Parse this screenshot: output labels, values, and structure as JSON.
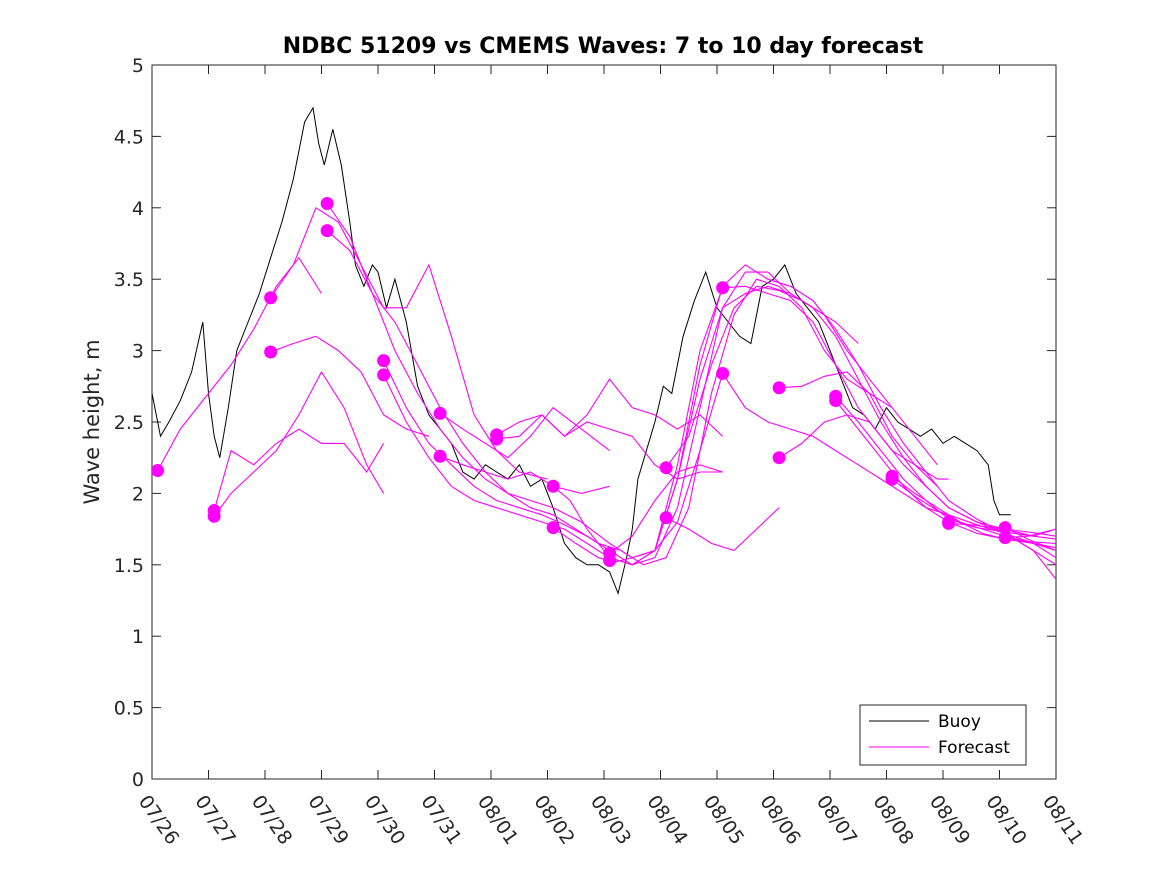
{
  "chart_data": {
    "type": "line",
    "title": "NDBC 51209 vs CMEMS Waves: 7 to 10 day forecast",
    "xlabel": "",
    "ylabel": "Wave height, m",
    "x_ticks": [
      "07/26",
      "07/27",
      "07/28",
      "07/29",
      "07/30",
      "07/31",
      "08/01",
      "08/02",
      "08/03",
      "08/04",
      "08/05",
      "08/06",
      "08/07",
      "08/08",
      "08/09",
      "08/10",
      "08/11"
    ],
    "xlim": [
      0,
      16
    ],
    "ylim": [
      0,
      5
    ],
    "y_ticks": [
      "0",
      "0.5",
      "1",
      "1.5",
      "2",
      "2.5",
      "3",
      "3.5",
      "4",
      "4.5",
      "5"
    ],
    "grid": false,
    "legend": {
      "position": "bottom-right",
      "entries": [
        "Buoy",
        "Forecast"
      ]
    },
    "colors": {
      "buoy": "#000000",
      "forecast": "#ff00ff"
    },
    "buoy": {
      "name": "Buoy",
      "x": [
        0,
        0.15,
        0.3,
        0.5,
        0.7,
        0.9,
        1.0,
        1.1,
        1.2,
        1.35,
        1.5,
        1.7,
        1.9,
        2.1,
        2.3,
        2.5,
        2.7,
        2.85,
        2.95,
        3.05,
        3.2,
        3.35,
        3.5,
        3.6,
        3.75,
        3.9,
        4.0,
        4.15,
        4.3,
        4.5,
        4.7,
        4.9,
        5.1,
        5.3,
        5.5,
        5.7,
        5.9,
        6.1,
        6.3,
        6.5,
        6.7,
        6.9,
        7.1,
        7.3,
        7.5,
        7.7,
        7.9,
        8.1,
        8.25,
        8.4,
        8.5,
        8.6,
        8.75,
        8.9,
        9.05,
        9.2,
        9.4,
        9.6,
        9.8,
        10.0,
        10.2,
        10.4,
        10.6,
        10.8,
        11.0,
        11.2,
        11.4,
        11.6,
        11.8,
        12.0,
        12.2,
        12.4,
        12.6,
        12.8,
        13.0,
        13.2,
        13.4,
        13.6,
        13.8,
        14.0,
        14.2,
        14.4,
        14.6,
        14.8,
        14.9,
        15.0,
        15.1,
        15.2
      ],
      "values": [
        2.7,
        2.4,
        2.5,
        2.65,
        2.85,
        3.2,
        2.7,
        2.4,
        2.25,
        2.6,
        3.0,
        3.2,
        3.4,
        3.65,
        3.9,
        4.2,
        4.6,
        4.7,
        4.45,
        4.3,
        4.55,
        4.3,
        3.9,
        3.6,
        3.45,
        3.6,
        3.55,
        3.3,
        3.5,
        3.2,
        2.75,
        2.55,
        2.45,
        2.35,
        2.15,
        2.1,
        2.2,
        2.15,
        2.1,
        2.2,
        2.05,
        2.1,
        1.9,
        1.65,
        1.55,
        1.5,
        1.5,
        1.45,
        1.3,
        1.55,
        1.75,
        2.1,
        2.3,
        2.5,
        2.75,
        2.7,
        3.1,
        3.35,
        3.55,
        3.3,
        3.2,
        3.1,
        3.05,
        3.45,
        3.5,
        3.6,
        3.4,
        3.3,
        3.2,
        3.0,
        2.8,
        2.6,
        2.55,
        2.45,
        2.6,
        2.5,
        2.45,
        2.4,
        2.45,
        2.35,
        2.4,
        2.35,
        2.3,
        2.2,
        1.95,
        1.85,
        1.85,
        1.85
      ]
    },
    "forecast": {
      "name": "Forecast",
      "lines": [
        {
          "x": [
            0.1,
            0.5,
            1.0,
            1.4,
            1.8,
            2.2,
            2.6,
            3.0
          ],
          "values": [
            2.16,
            2.45,
            2.7,
            2.9,
            3.15,
            3.45,
            3.65,
            3.4
          ]
        },
        {
          "x": [
            1.1,
            1.4,
            1.8,
            2.2,
            2.6,
            3.0,
            3.4,
            3.8,
            4.1
          ],
          "values": [
            1.84,
            2.0,
            2.15,
            2.3,
            2.55,
            2.85,
            2.6,
            2.2,
            2.0
          ]
        },
        {
          "x": [
            1.1,
            1.4,
            1.8,
            2.2,
            2.6,
            3.0,
            3.4,
            3.8,
            4.1
          ],
          "values": [
            1.88,
            2.3,
            2.2,
            2.35,
            2.45,
            2.35,
            2.35,
            2.15,
            2.35
          ]
        },
        {
          "x": [
            2.1,
            2.5,
            2.9,
            3.3,
            3.7,
            4.1,
            4.5,
            4.9,
            5.3,
            5.7,
            6.1,
            6.5,
            7.0
          ],
          "values": [
            3.37,
            3.6,
            4.0,
            3.9,
            3.6,
            3.3,
            3.3,
            3.6,
            3.1,
            2.55,
            2.3,
            2.15,
            2.1
          ]
        },
        {
          "x": [
            2.1,
            2.5,
            2.9,
            3.3,
            3.7,
            4.1,
            4.5,
            4.9
          ],
          "values": [
            2.99,
            3.05,
            3.1,
            3.0,
            2.85,
            2.55,
            2.45,
            2.4
          ]
        },
        {
          "x": [
            3.1,
            3.5,
            3.9,
            4.3,
            4.7,
            5.1,
            5.5,
            5.9,
            6.3,
            6.7,
            7.1,
            7.6,
            8.1,
            8.5,
            8.9,
            9.3,
            9.7,
            10.1,
            10.5,
            10.9,
            11.3,
            11.7,
            12.1,
            12.5
          ],
          "values": [
            4.03,
            3.8,
            3.4,
            3.0,
            2.7,
            2.45,
            2.25,
            2.1,
            2.0,
            1.95,
            1.9,
            1.8,
            1.65,
            1.55,
            1.6,
            2.1,
            2.8,
            3.3,
            3.4,
            3.45,
            3.4,
            3.3,
            3.2,
            3.05
          ]
        },
        {
          "x": [
            3.1,
            3.5,
            3.9,
            4.3,
            4.7,
            5.1,
            5.5,
            5.9,
            6.3,
            6.7,
            7.1,
            7.5,
            7.9,
            8.3,
            8.7,
            9.1,
            9.5,
            9.9,
            10.3,
            10.7,
            11.1,
            11.5,
            11.9,
            12.3,
            12.7,
            13.1
          ],
          "values": [
            3.84,
            3.7,
            3.4,
            3.2,
            2.9,
            2.6,
            2.35,
            2.15,
            2.0,
            1.9,
            1.85,
            1.75,
            1.65,
            1.6,
            1.5,
            1.55,
            1.9,
            2.7,
            3.25,
            3.5,
            3.45,
            3.3,
            3.0,
            2.8,
            2.7,
            2.6
          ]
        },
        {
          "x": [
            4.1,
            4.5,
            4.9,
            5.3,
            5.7,
            6.1,
            6.5,
            6.9,
            7.3,
            7.7,
            8.1,
            8.5,
            8.9,
            9.3,
            9.7,
            10.1,
            10.5,
            10.9,
            11.3,
            11.7,
            12.1,
            12.5,
            12.9,
            13.3,
            13.7,
            14.1,
            14.6,
            15.1,
            15.6,
            16.0
          ],
          "values": [
            2.93,
            2.6,
            2.35,
            2.2,
            2.05,
            1.95,
            1.9,
            1.85,
            1.78,
            1.7,
            1.6,
            1.5,
            1.55,
            1.9,
            2.6,
            3.3,
            3.55,
            3.55,
            3.4,
            3.3,
            3.1,
            2.8,
            2.5,
            2.25,
            2.05,
            1.9,
            1.8,
            1.75,
            1.7,
            1.75
          ]
        },
        {
          "x": [
            4.1,
            4.5,
            4.9,
            5.3,
            5.7,
            6.1,
            6.5,
            6.9,
            7.3,
            7.7,
            8.1,
            8.5,
            8.9,
            9.3,
            9.7,
            10.1,
            10.5,
            10.9,
            11.3,
            11.7,
            12.1,
            12.5,
            12.9,
            13.3,
            13.7,
            14.1,
            14.6,
            15.1,
            15.6,
            16.0
          ],
          "values": [
            2.83,
            2.5,
            2.25,
            2.05,
            1.95,
            1.9,
            1.85,
            1.8,
            1.75,
            1.65,
            1.55,
            1.5,
            1.6,
            2.1,
            2.9,
            3.45,
            3.6,
            3.5,
            3.45,
            3.35,
            3.15,
            2.9,
            2.6,
            2.35,
            2.15,
            1.95,
            1.82,
            1.72,
            1.65,
            1.55
          ]
        },
        {
          "x": [
            5.1,
            5.5,
            5.9,
            6.3,
            6.7,
            7.1,
            7.6,
            8.1
          ],
          "values": [
            2.56,
            2.45,
            2.35,
            2.25,
            2.4,
            2.6,
            2.45,
            2.3
          ]
        },
        {
          "x": [
            5.1,
            5.5,
            5.9,
            6.3,
            6.7,
            7.1,
            7.6,
            8.1
          ],
          "values": [
            2.26,
            2.2,
            2.15,
            2.1,
            2.15,
            2.05,
            2.0,
            2.05
          ]
        },
        {
          "x": [
            6.1,
            6.5,
            6.9,
            7.3,
            7.7,
            8.1,
            8.5,
            8.9,
            9.3,
            9.7,
            10.1
          ],
          "values": [
            2.41,
            2.5,
            2.55,
            2.4,
            2.55,
            2.8,
            2.6,
            2.55,
            2.45,
            2.55,
            2.4
          ]
        },
        {
          "x": [
            6.1,
            6.5,
            6.9,
            7.3,
            7.7,
            8.1,
            8.5,
            8.9,
            9.3,
            9.7,
            10.1
          ],
          "values": [
            2.38,
            2.4,
            2.55,
            2.4,
            2.5,
            2.45,
            2.4,
            2.2,
            2.1,
            2.15,
            2.15
          ]
        },
        {
          "x": [
            7.1,
            7.4,
            7.7,
            8.1,
            8.5,
            8.9,
            9.3,
            9.7,
            10.1,
            10.5,
            10.9,
            11.3,
            11.7,
            12.1,
            12.5,
            12.9,
            13.3,
            13.7,
            14.1,
            14.6,
            15.1,
            15.6,
            16.0
          ],
          "values": [
            2.05,
            1.95,
            1.75,
            1.55,
            1.5,
            1.6,
            2.2,
            3.0,
            3.44,
            3.45,
            3.4,
            3.35,
            3.2,
            2.9,
            2.6,
            2.4,
            2.2,
            2.05,
            1.9,
            1.8,
            1.72,
            1.6,
            1.5
          ]
        },
        {
          "x": [
            7.1,
            7.5,
            7.9,
            8.2,
            8.5,
            8.9,
            9.3,
            9.7,
            10.1,
            10.5,
            10.9,
            11.3,
            11.7,
            12.1,
            12.5,
            12.9,
            13.3,
            13.7,
            14.1,
            14.6,
            15.1,
            15.6,
            16.0
          ],
          "values": [
            1.76,
            1.65,
            1.55,
            1.52,
            1.55,
            1.6,
            1.8,
            2.3,
            2.84,
            2.6,
            2.5,
            2.45,
            2.4,
            2.3,
            2.2,
            2.1,
            2.0,
            1.9,
            1.85,
            1.78,
            1.72,
            1.6,
            1.4
          ]
        },
        {
          "x": [
            8.1,
            8.5,
            8.9,
            9.3,
            9.7,
            10.1
          ],
          "values": [
            1.58,
            1.7,
            1.95,
            2.15,
            2.2,
            2.15
          ]
        },
        {
          "x": [
            9.1,
            9.5,
            9.9,
            10.3,
            10.7,
            11.1
          ],
          "values": [
            1.83,
            1.75,
            1.65,
            1.6,
            1.75,
            1.9
          ]
        },
        {
          "x": [
            9.1,
            9.5,
            9.9,
            10.3,
            10.7,
            11.1,
            11.5,
            11.9,
            12.3,
            12.7,
            13.1,
            13.5,
            13.9
          ],
          "values": [
            2.18,
            2.4,
            2.9,
            3.3,
            3.45,
            3.42,
            3.35,
            3.25,
            3.0,
            2.8,
            2.6,
            2.4,
            2.2
          ]
        },
        {
          "x": [
            11.1,
            11.5,
            11.9,
            12.3,
            12.7,
            13.1,
            13.5,
            13.9
          ],
          "values": [
            2.74,
            2.75,
            2.82,
            2.85,
            2.7,
            2.4,
            2.2,
            2.05
          ]
        },
        {
          "x": [
            11.1,
            11.5,
            11.9,
            12.3,
            12.7,
            13.1,
            13.5,
            13.9,
            14.1
          ],
          "values": [
            2.25,
            2.35,
            2.5,
            2.55,
            2.5,
            2.3,
            2.2,
            2.1,
            2.1
          ]
        },
        {
          "x": [
            12.1,
            12.5,
            12.9,
            13.3,
            13.7,
            14.1,
            14.6,
            15.1,
            15.6,
            16.0
          ],
          "values": [
            2.68,
            2.5,
            2.3,
            2.1,
            1.95,
            1.82,
            1.76,
            1.73,
            1.7,
            1.68
          ]
        },
        {
          "x": [
            12.1,
            12.5,
            12.9,
            13.3,
            13.7,
            14.1,
            14.6,
            15.1,
            15.6,
            16.0
          ],
          "values": [
            2.65,
            2.45,
            2.25,
            2.05,
            1.9,
            1.8,
            1.72,
            1.68,
            1.65,
            1.62
          ]
        },
        {
          "x": [
            13.1,
            13.5,
            13.9,
            14.3,
            14.7,
            15.1,
            15.6,
            16.0
          ],
          "values": [
            2.12,
            2.0,
            1.9,
            1.8,
            1.75,
            1.7,
            1.65,
            1.6
          ]
        },
        {
          "x": [
            13.1,
            13.5,
            13.9,
            14.3,
            14.7,
            15.1,
            15.6,
            16.0
          ],
          "values": [
            2.1,
            1.98,
            1.88,
            1.8,
            1.72,
            1.68,
            1.66,
            1.65
          ]
        },
        {
          "x": [
            14.1,
            14.5,
            14.9,
            15.3,
            15.7,
            16.0
          ],
          "values": [
            1.79,
            1.78,
            1.76,
            1.74,
            1.72,
            1.7
          ]
        },
        {
          "x": [
            15.1,
            15.5,
            16.0
          ],
          "values": [
            1.76,
            1.68,
            1.6
          ]
        },
        {
          "x": [
            15.1,
            15.5,
            16.0
          ],
          "values": [
            1.69,
            1.7,
            1.75
          ]
        }
      ],
      "markers": {
        "x": [
          0.1,
          1.1,
          1.1,
          2.1,
          2.1,
          3.1,
          3.1,
          4.1,
          4.1,
          5.1,
          5.1,
          6.1,
          6.1,
          7.1,
          7.1,
          8.1,
          8.1,
          9.1,
          9.1,
          10.1,
          10.1,
          11.1,
          11.1,
          12.1,
          12.1,
          13.1,
          13.1,
          14.1,
          14.1,
          15.1,
          15.1
        ],
        "values": [
          2.16,
          1.84,
          1.88,
          3.37,
          2.99,
          4.03,
          3.84,
          2.93,
          2.83,
          2.56,
          2.26,
          2.41,
          2.38,
          2.05,
          1.76,
          1.58,
          1.53,
          2.18,
          1.83,
          3.44,
          2.84,
          2.74,
          2.25,
          2.68,
          2.65,
          2.12,
          2.1,
          1.79,
          1.8,
          1.76,
          1.69
        ]
      }
    }
  }
}
